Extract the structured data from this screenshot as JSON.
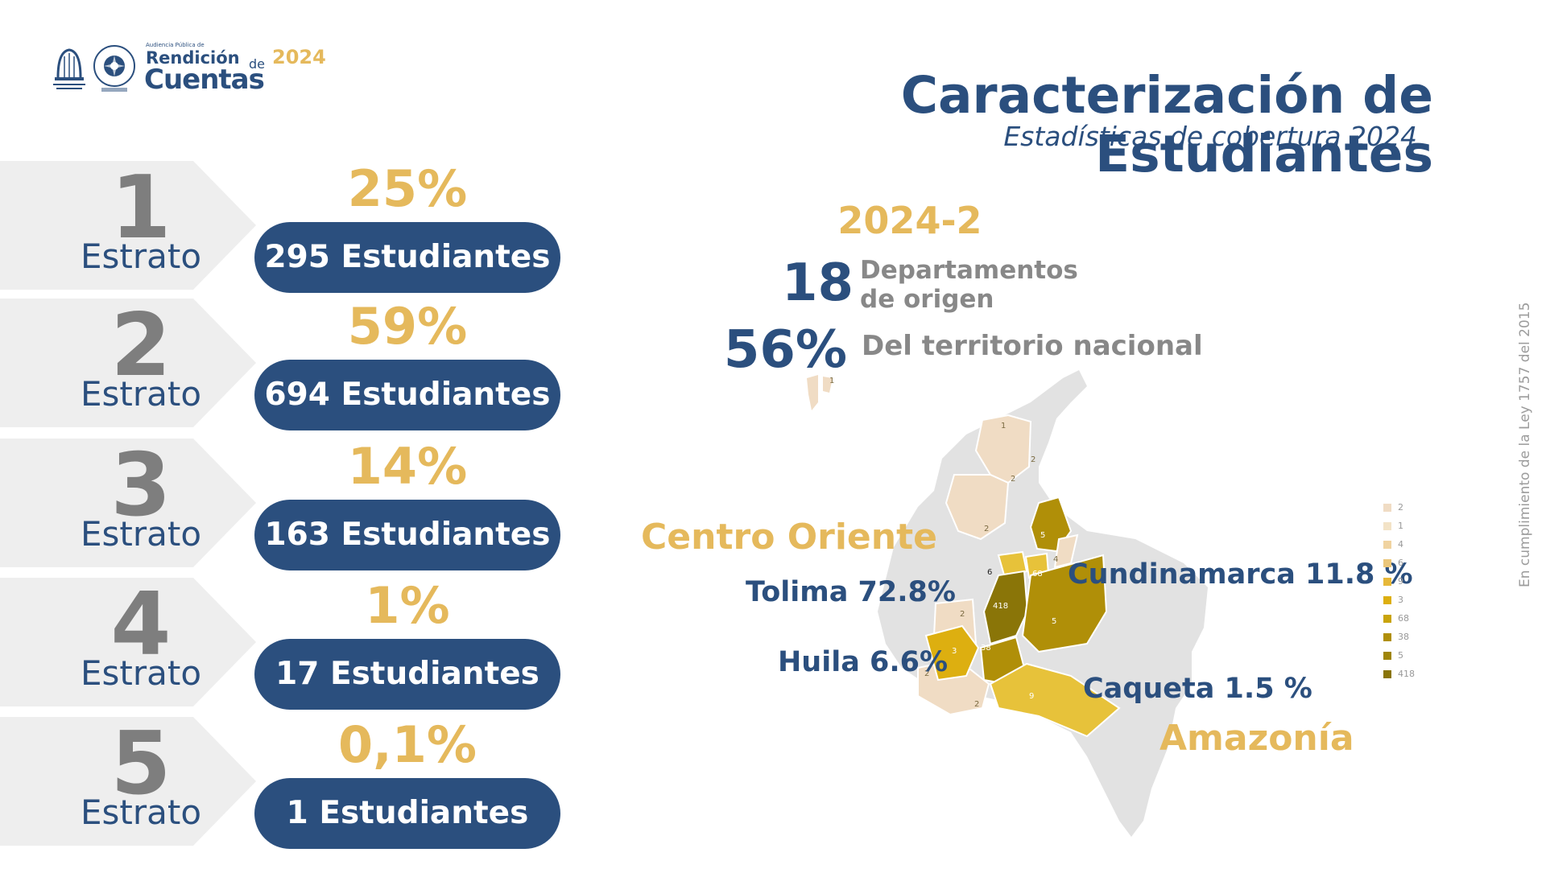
{
  "header": {
    "logo_text": {
      "small_caption": "Audiencia Pública de",
      "line1": "Rendición",
      "de": "de",
      "line2": "Cuentas",
      "year": "2024"
    },
    "title": "Caracterización de Estudiantes",
    "subtitle": "Estadísticas de cobertura 2024"
  },
  "estratos": [
    {
      "number": "1",
      "label": "Estrato",
      "percent": "25%",
      "students": "295 Estudiantes"
    },
    {
      "number": "2",
      "label": "Estrato",
      "percent": "59%",
      "students": "694 Estudiantes"
    },
    {
      "number": "3",
      "label": "Estrato",
      "percent": "14%",
      "students": "163 Estudiantes"
    },
    {
      "number": "4",
      "label": "Estrato",
      "percent": "1%",
      "students": "17 Estudiantes"
    },
    {
      "number": "5",
      "label": "Estrato",
      "percent": "0,1%",
      "students": "1 Estudiantes"
    }
  ],
  "stats": {
    "period": "2024-2",
    "departments_value": "18",
    "departments_label_1": "Departamentos",
    "departments_label_2": "de origen",
    "territory_value": "56%",
    "territory_label": "Del territorio nacional"
  },
  "map": {
    "region_centro_oriente": "Centro Oriente",
    "region_amazonia": "Amazonía",
    "dept_tolima": "Tolima 72.8%",
    "dept_cundinamarca": "Cundinamarca 11.8 %",
    "dept_huila": "Huila 6.6%",
    "dept_caqueta": "Caqueta 1.5 %",
    "region_values": [
      "1",
      "1",
      "2",
      "2",
      "2",
      "5",
      "4",
      "6",
      "68",
      "418",
      "2",
      "5",
      "3",
      "38",
      "2",
      "2",
      "9"
    ],
    "colors": {
      "land": "#e2e2e2",
      "light": "#f0dcc4",
      "mid": "#e7c23a",
      "dark": "#b08f08",
      "darkest": "#8a7508"
    }
  },
  "legend": [
    "2",
    "1",
    "4",
    "6",
    "9",
    "3",
    "68",
    "38",
    "5",
    "418"
  ],
  "legend_colors": [
    "#f0dcc4",
    "#f3e3c7",
    "#f0d3a0",
    "#ebc67a",
    "#e7b839",
    "#ddaf10",
    "#c9a40c",
    "#b08f08",
    "#9f8509",
    "#8a7508"
  ],
  "side_note": "En cumplimiento de la Ley 1757 del 2015",
  "colors": {
    "primary_blue": "#2b4f7e",
    "accent_gold": "#e5b95c",
    "gray_number": "#7e7e7e",
    "arrow_bg": "#eeeeee"
  }
}
